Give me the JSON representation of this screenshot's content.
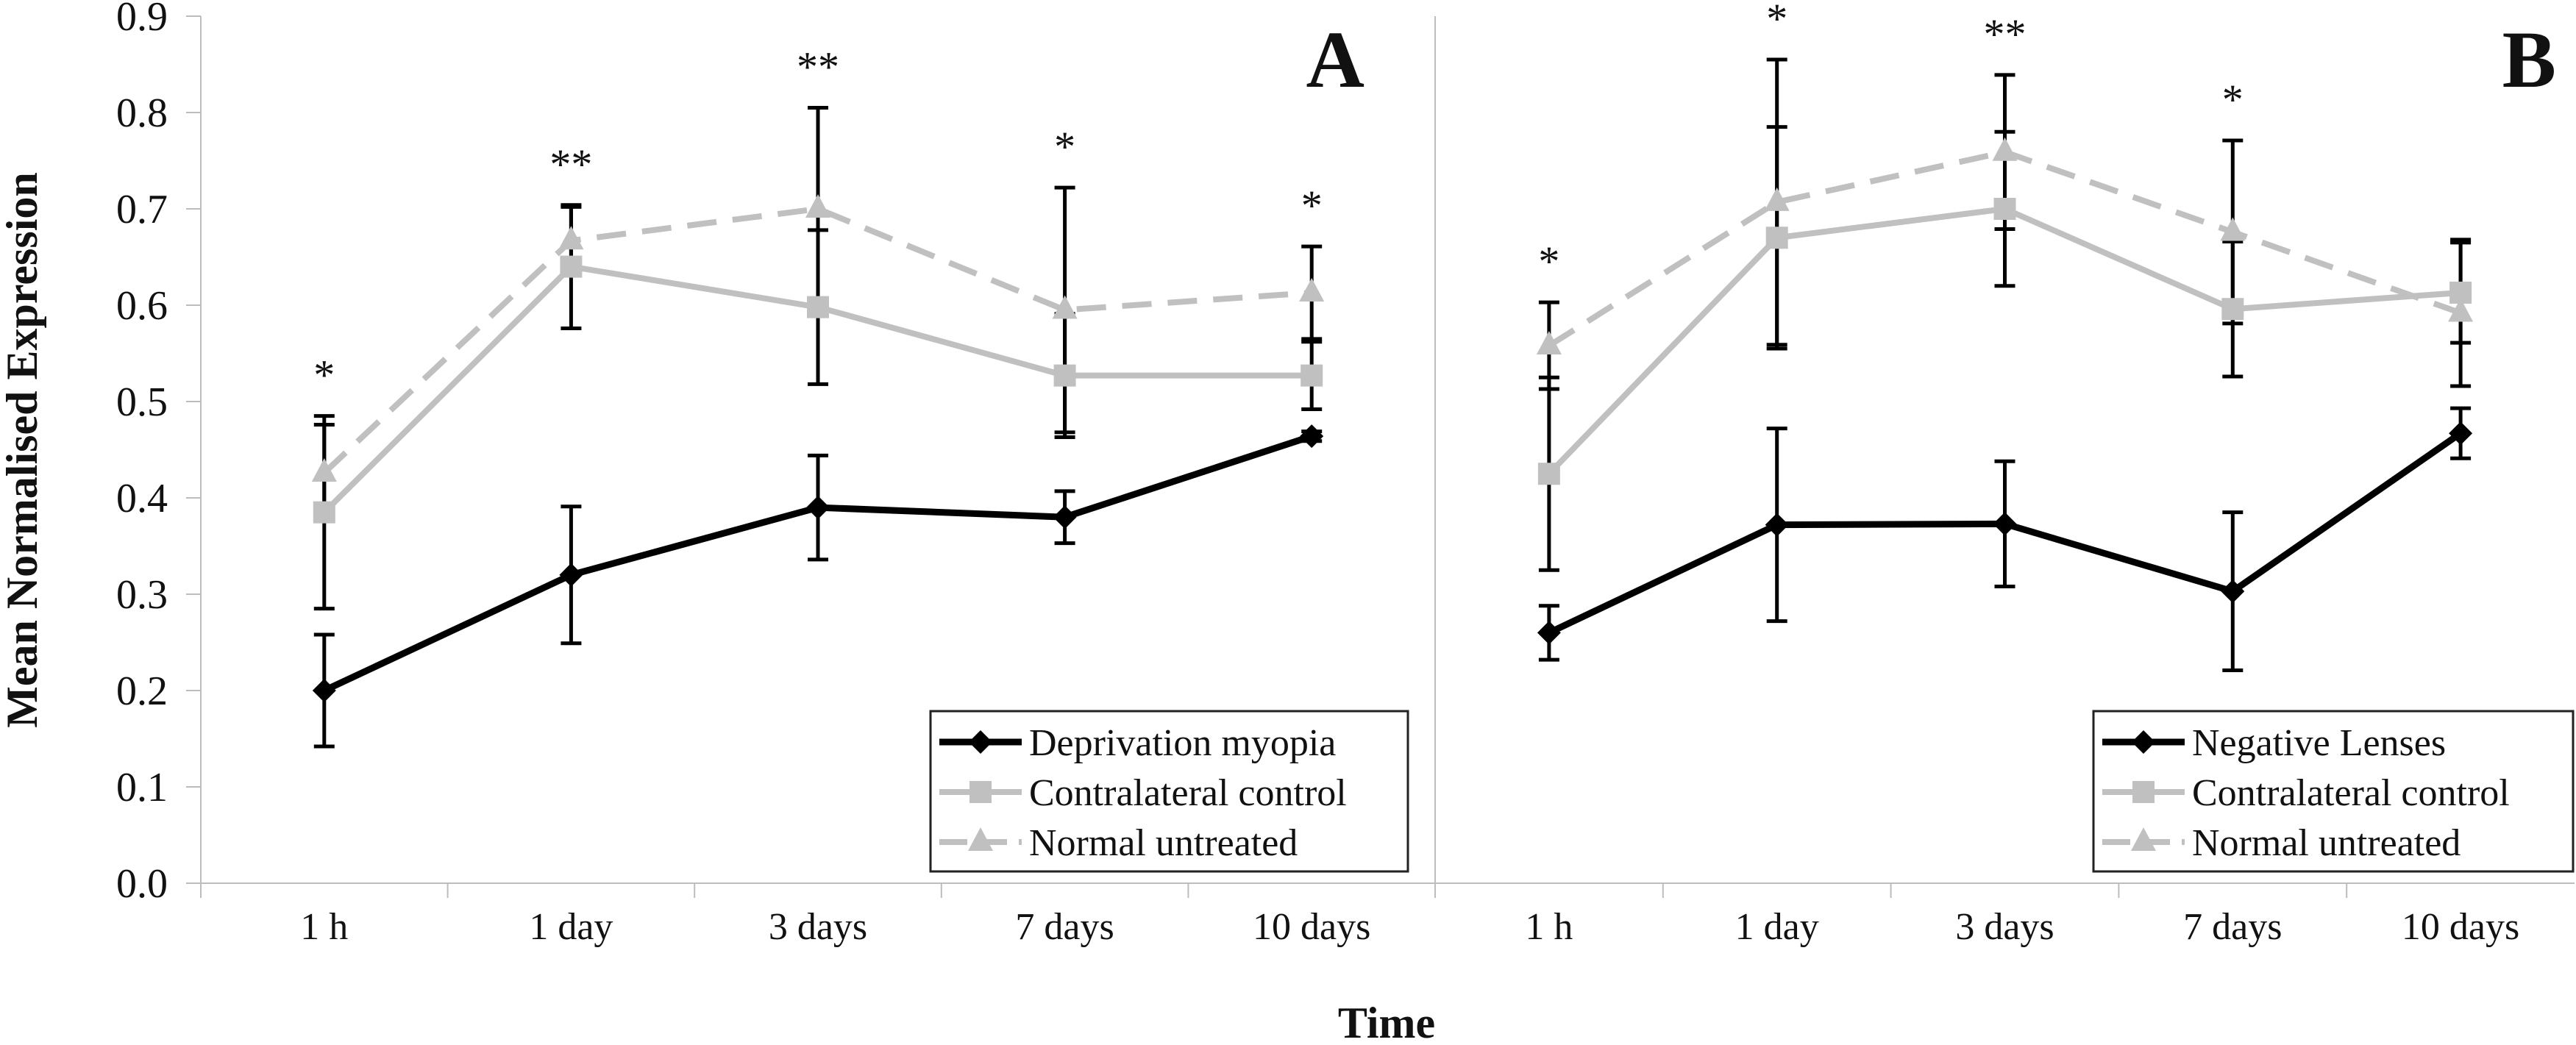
{
  "chart_data": {
    "type": "line",
    "ylabel": "Mean Normalised Expression",
    "xlabel": "Time",
    "ylim": [
      0.0,
      0.9
    ],
    "yticks": [
      "0.0",
      "0.1",
      "0.2",
      "0.3",
      "0.4",
      "0.5",
      "0.6",
      "0.7",
      "0.8",
      "0.9"
    ],
    "grid": false,
    "panels": [
      {
        "letter": "A",
        "categories": [
          "1 h",
          "1 day",
          "3 days",
          "7 days",
          "10 days"
        ],
        "significance": [
          "*",
          "**",
          "**",
          "*",
          "*"
        ],
        "legend_position": "bottom-right",
        "series": [
          {
            "name": "Deprivation myopia",
            "color": "#000000",
            "marker": "diamond",
            "dash": false,
            "values": [
              0.2,
              0.32,
              0.39,
              0.38,
              0.464
            ],
            "errors": [
              0.058,
              0.071,
              0.054,
              0.027,
              0.005
            ]
          },
          {
            "name": "Contralateral control",
            "color": "#c0c0c0",
            "marker": "square",
            "dash": false,
            "values": [
              0.385,
              0.64,
              0.598,
              0.527,
              0.527
            ],
            "errors": [
              0.1,
              0.064,
              0.08,
              0.064,
              0.035
            ]
          },
          {
            "name": "Normal untreated",
            "color": "#c0c0c0",
            "marker": "triangle",
            "dash": true,
            "values": [
              0.426,
              0.667,
              0.7,
              0.595,
              0.613
            ],
            "errors": [
              0.05,
              0.035,
              0.105,
              0.127,
              0.048
            ]
          }
        ]
      },
      {
        "letter": "B",
        "categories": [
          "1 h",
          "1 day",
          "3 days",
          "7 days",
          "10 days"
        ],
        "significance": [
          "*",
          "*",
          "**",
          "*",
          ""
        ],
        "legend_position": "bottom-right",
        "series": [
          {
            "name": "Negative Lenses",
            "color": "#000000",
            "marker": "diamond",
            "dash": false,
            "values": [
              0.26,
              0.372,
              0.373,
              0.303,
              0.467
            ],
            "errors": [
              0.028,
              0.1,
              0.065,
              0.082,
              0.026
            ]
          },
          {
            "name": "Contralateral control",
            "color": "#c0c0c0",
            "marker": "square",
            "dash": false,
            "values": [
              0.425,
              0.67,
              0.7,
              0.596,
              0.613
            ],
            "errors": [
              0.1,
              0.115,
              0.08,
              0.07,
              0.052
            ]
          },
          {
            "name": "Normal untreated",
            "color": "#c0c0c0",
            "marker": "triangle",
            "dash": true,
            "values": [
              0.558,
              0.707,
              0.759,
              0.676,
              0.592
            ],
            "errors": [
              0.045,
              0.148,
              0.08,
              0.095,
              0.076
            ]
          }
        ]
      }
    ]
  }
}
